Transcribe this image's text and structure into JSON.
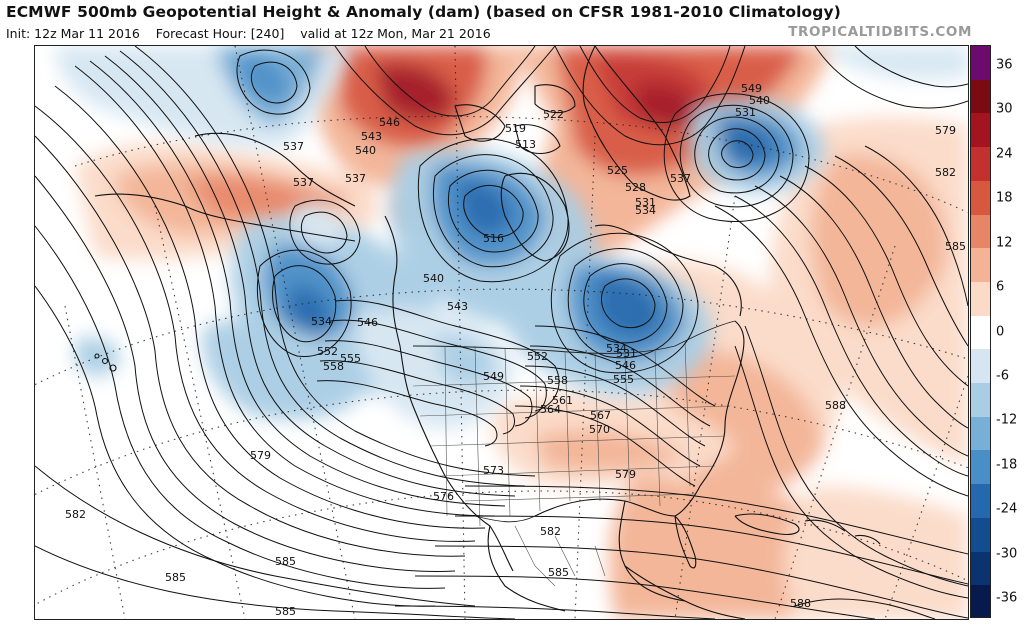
{
  "header": {
    "title": "ECMWF 500mb Geopotential Height & Anomaly (dam) (based on CFSR 1981-2010 Climatology)",
    "init": "Init: 12z Mar 11 2016",
    "forecast_hour": "Forecast Hour: [240]",
    "valid": "valid at 12z Mon, Mar 21 2016",
    "brand": "TROPICALTIDBITS.COM"
  },
  "colorbar": {
    "unit": "dam",
    "ticks": [
      "36",
      "30",
      "24",
      "18",
      "12",
      "6",
      "0",
      "-6",
      "-12",
      "-18",
      "-24",
      "-30",
      "-36"
    ],
    "colors": [
      "#6d0a6d",
      "#7c0a12",
      "#a31420",
      "#c4302e",
      "#d8573f",
      "#e78667",
      "#f3b394",
      "#fbdac7",
      "#ffffff",
      "#d5e6f2",
      "#a9cde4",
      "#78afd6",
      "#4a8ec7",
      "#2468ad",
      "#134d90",
      "#0b3370",
      "#061a4d"
    ]
  },
  "map": {
    "contour_labels": [
      "537",
      "537",
      "537",
      "543",
      "540",
      "546",
      "519",
      "513",
      "522",
      "525",
      "528",
      "531",
      "534",
      "549",
      "540",
      "531",
      "537",
      "579",
      "582",
      "585",
      "516",
      "540",
      "543",
      "546",
      "534",
      "552",
      "555",
      "558",
      "549",
      "552",
      "558",
      "561",
      "564",
      "567",
      "570",
      "546",
      "531",
      "534",
      "555",
      "588",
      "579",
      "573",
      "576",
      "579",
      "582",
      "585",
      "582",
      "585",
      "585",
      "585",
      "588"
    ],
    "features": [
      "height-contours",
      "anomaly-shading",
      "coastlines",
      "state-borders",
      "country-borders",
      "lat-lon-grid"
    ]
  }
}
